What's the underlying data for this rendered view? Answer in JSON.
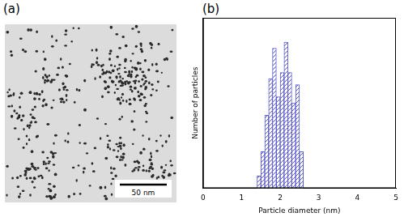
{
  "panel_labels": [
    "(a)",
    "(b)"
  ],
  "micrograph": {
    "scale_bar": "50 nm"
  },
  "chart_data": {
    "type": "histogram",
    "x_label": "Particle diameter (nm)",
    "y_label": "Number of particles",
    "bins": [
      1.4,
      1.5,
      1.6,
      1.7,
      1.8,
      1.9,
      2.0,
      2.1,
      2.2,
      2.3,
      2.4,
      2.5,
      2.6
    ],
    "values": [
      2,
      6,
      12,
      18,
      23,
      15,
      19,
      24,
      19,
      14,
      17,
      6
    ],
    "color": "#5a5ad0",
    "xlim": [
      0,
      5
    ],
    "xticks": [
      0,
      1,
      2,
      3,
      4,
      5
    ],
    "ylim": [
      0,
      28
    ],
    "tick_labels": "x",
    "grid": false
  }
}
